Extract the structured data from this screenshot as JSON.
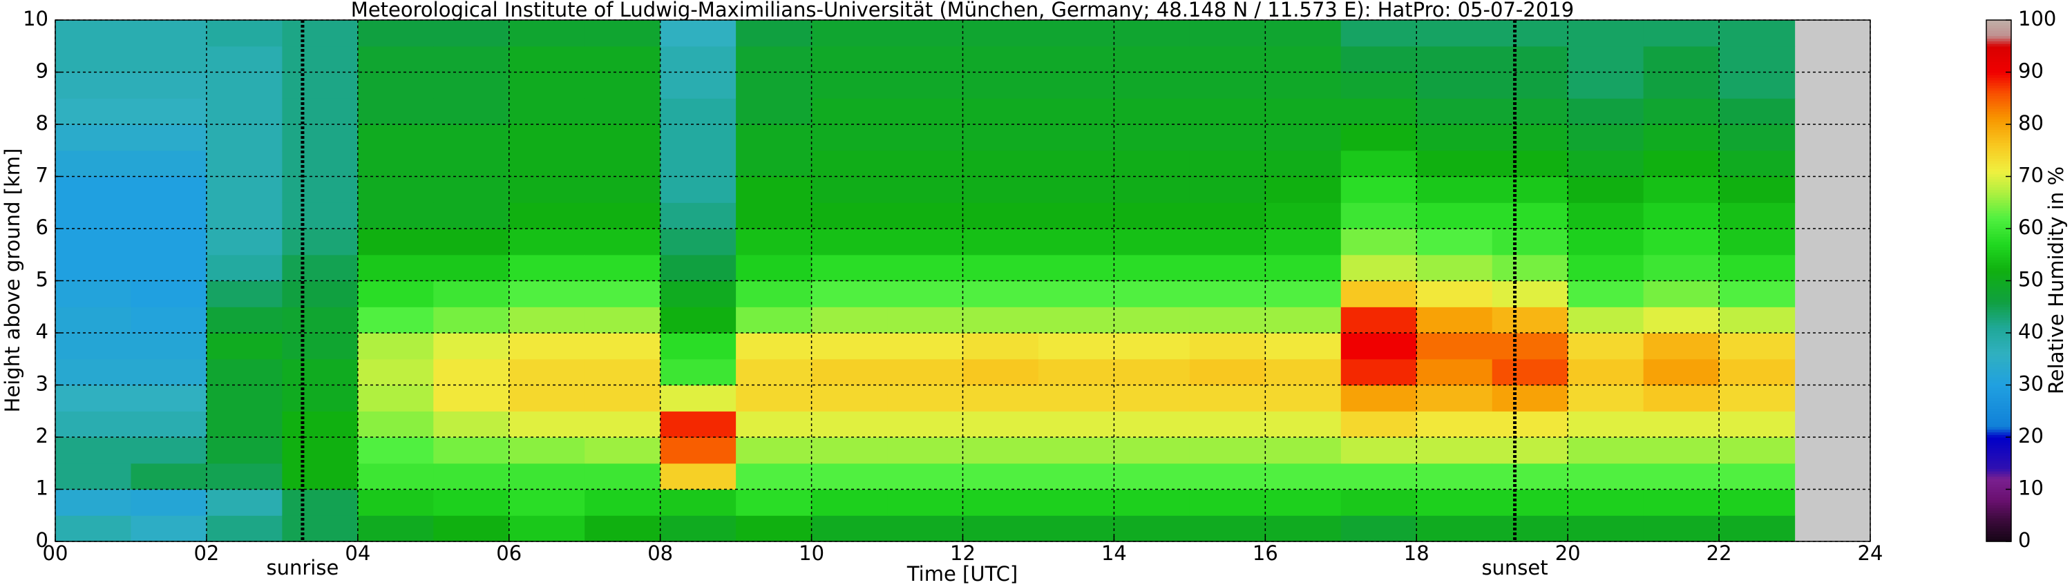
{
  "chart_data": {
    "type": "heatmap",
    "title": "Meteorological Institute of Ludwig-Maximilians-Universität (München, Germany; 48.148 N / 11.573 E):    HatPro: 05-07-2019",
    "x_label": "Time [UTC]",
    "y_label": "Height above ground [km]",
    "colorbar_label": "Relative Humidity in %",
    "xlim": [
      0,
      24
    ],
    "ylim": [
      0,
      10
    ],
    "xticks": [
      {
        "value": 0,
        "label": "00"
      },
      {
        "value": 2,
        "label": "02"
      },
      {
        "value": 4,
        "label": "04"
      },
      {
        "value": 6,
        "label": "06"
      },
      {
        "value": 8,
        "label": "08"
      },
      {
        "value": 10,
        "label": "10"
      },
      {
        "value": 12,
        "label": "12"
      },
      {
        "value": 14,
        "label": "14"
      },
      {
        "value": 16,
        "label": "16"
      },
      {
        "value": 18,
        "label": "18"
      },
      {
        "value": 20,
        "label": "20"
      },
      {
        "value": 22,
        "label": "22"
      },
      {
        "value": 24,
        "label": "24"
      }
    ],
    "yticks": [
      0,
      1,
      2,
      3,
      4,
      5,
      6,
      7,
      8,
      9,
      10
    ],
    "clim": [
      0,
      100
    ],
    "cticks": [
      0,
      10,
      20,
      30,
      40,
      50,
      60,
      70,
      80,
      90,
      100
    ],
    "grid": true,
    "background_color": "#c8c8c8",
    "colorscale": [
      {
        "value": 0,
        "color": "#150515"
      },
      {
        "value": 4,
        "color": "#3a0a3a"
      },
      {
        "value": 8,
        "color": "#6a1070"
      },
      {
        "value": 12,
        "color": "#7a2090"
      },
      {
        "value": 14,
        "color": "#3010b0"
      },
      {
        "value": 20,
        "color": "#0000c8"
      },
      {
        "value": 22,
        "color": "#1080d8"
      },
      {
        "value": 30,
        "color": "#20a0e0"
      },
      {
        "value": 36,
        "color": "#30b0c0"
      },
      {
        "value": 41,
        "color": "#20a898"
      },
      {
        "value": 46,
        "color": "#10a040"
      },
      {
        "value": 52,
        "color": "#10b010"
      },
      {
        "value": 57,
        "color": "#20d820"
      },
      {
        "value": 62,
        "color": "#50f040"
      },
      {
        "value": 67,
        "color": "#b0f040"
      },
      {
        "value": 71,
        "color": "#f0f040"
      },
      {
        "value": 76,
        "color": "#f8c820"
      },
      {
        "value": 81,
        "color": "#f89800"
      },
      {
        "value": 86,
        "color": "#f85000"
      },
      {
        "value": 90,
        "color": "#f00000"
      },
      {
        "value": 95,
        "color": "#d80000"
      },
      {
        "value": 97,
        "color": "#c09090"
      },
      {
        "value": 100,
        "color": "#c0b0a8"
      }
    ],
    "annotations": [
      {
        "text": "sunrise",
        "x": 3.27
      },
      {
        "text": "sunset",
        "x": 19.3
      }
    ],
    "x_edges": [
      0,
      1,
      2,
      3,
      4,
      5,
      6,
      7,
      8,
      9,
      10,
      11,
      12,
      13,
      14,
      15,
      16,
      17,
      18,
      19,
      20,
      21,
      22,
      23
    ],
    "y_edges": [
      0,
      0.5,
      1,
      1.5,
      2,
      2.5,
      3,
      3.5,
      4,
      4.5,
      5,
      5.5,
      6,
      6.5,
      7,
      7.5,
      8,
      8.5,
      9,
      9.5,
      10
    ],
    "z": [
      [
        38,
        33,
        42,
        42,
        38,
        36,
        33,
        32,
        32,
        31,
        30,
        30,
        30,
        30,
        32,
        34,
        36,
        37,
        38,
        38
      ],
      [
        35,
        32,
        45,
        42,
        38,
        36,
        33,
        32,
        31,
        30,
        30,
        30,
        30,
        30,
        32,
        34,
        36,
        37,
        38,
        38
      ],
      [
        42,
        38,
        45,
        47,
        48,
        48,
        48,
        50,
        47,
        44,
        40,
        38,
        38,
        38,
        38,
        38,
        38,
        38,
        38,
        40
      ],
      [
        45,
        45,
        52,
        52,
        52,
        50,
        50,
        48,
        48,
        46,
        45,
        43,
        42,
        42,
        42,
        42,
        42,
        42,
        42,
        42
      ],
      [
        50,
        55,
        60,
        62,
        65,
        67,
        68,
        67,
        62,
        58,
        55,
        52,
        50,
        50,
        50,
        50,
        48,
        48,
        48,
        46
      ],
      [
        52,
        56,
        60,
        64,
        68,
        72,
        72,
        70,
        64,
        60,
        55,
        52,
        50,
        50,
        50,
        50,
        48,
        48,
        48,
        46
      ],
      [
        55,
        58,
        60,
        65,
        70,
        74,
        74,
        72,
        66,
        62,
        58,
        54,
        52,
        51,
        51,
        51,
        50,
        50,
        50,
        48
      ],
      [
        52,
        56,
        60,
        66,
        70,
        74,
        74,
        72,
        66,
        62,
        58,
        54,
        52,
        51,
        51,
        51,
        50,
        50,
        50,
        48
      ],
      [
        50,
        55,
        75,
        85,
        88,
        70,
        60,
        58,
        52,
        50,
        46,
        44,
        42,
        40,
        40,
        40,
        40,
        38,
        38,
        36
      ],
      [
        52,
        58,
        62,
        66,
        70,
        74,
        74,
        72,
        64,
        60,
        56,
        54,
        52,
        52,
        50,
        50,
        48,
        48,
        48,
        46
      ],
      [
        50,
        56,
        62,
        66,
        70,
        74,
        75,
        72,
        66,
        62,
        58,
        54,
        52,
        51,
        51,
        50,
        50,
        49,
        49,
        48
      ],
      [
        50,
        56,
        62,
        66,
        70,
        74,
        75,
        72,
        66,
        62,
        58,
        54,
        52,
        51,
        51,
        50,
        50,
        49,
        49,
        48
      ],
      [
        50,
        56,
        62,
        66,
        70,
        74,
        76,
        73,
        66,
        62,
        58,
        54,
        52,
        51,
        51,
        50,
        50,
        49,
        49,
        48
      ],
      [
        50,
        56,
        62,
        66,
        70,
        74,
        75,
        72,
        66,
        62,
        58,
        54,
        52,
        51,
        51,
        50,
        50,
        49,
        49,
        48
      ],
      [
        50,
        56,
        62,
        66,
        70,
        74,
        75,
        72,
        66,
        62,
        58,
        54,
        52,
        51,
        51,
        50,
        50,
        49,
        49,
        48
      ],
      [
        50,
        56,
        62,
        66,
        70,
        74,
        76,
        73,
        66,
        62,
        58,
        54,
        52,
        51,
        51,
        50,
        50,
        49,
        49,
        48
      ],
      [
        50,
        56,
        62,
        66,
        70,
        74,
        75,
        72,
        66,
        62,
        58,
        55,
        53,
        52,
        51,
        50,
        50,
        49,
        49,
        48
      ],
      [
        48,
        55,
        62,
        68,
        74,
        80,
        88,
        90,
        88,
        76,
        68,
        64,
        60,
        58,
        55,
        52,
        50,
        48,
        46,
        44
      ],
      [
        50,
        56,
        62,
        68,
        72,
        78,
        82,
        84,
        80,
        72,
        66,
        62,
        58,
        55,
        52,
        50,
        48,
        46,
        46,
        44
      ],
      [
        50,
        56,
        62,
        68,
        72,
        80,
        86,
        84,
        78,
        70,
        64,
        60,
        58,
        55,
        52,
        50,
        48,
        46,
        46,
        44
      ],
      [
        50,
        56,
        62,
        66,
        70,
        74,
        76,
        74,
        68,
        62,
        58,
        56,
        54,
        52,
        50,
        48,
        46,
        44,
        44,
        44
      ],
      [
        50,
        56,
        62,
        66,
        70,
        76,
        80,
        78,
        70,
        64,
        60,
        58,
        56,
        54,
        52,
        50,
        48,
        46,
        46,
        44
      ],
      [
        50,
        56,
        62,
        66,
        70,
        74,
        76,
        74,
        68,
        62,
        58,
        55,
        54,
        52,
        50,
        48,
        46,
        44,
        44,
        44
      ]
    ]
  }
}
